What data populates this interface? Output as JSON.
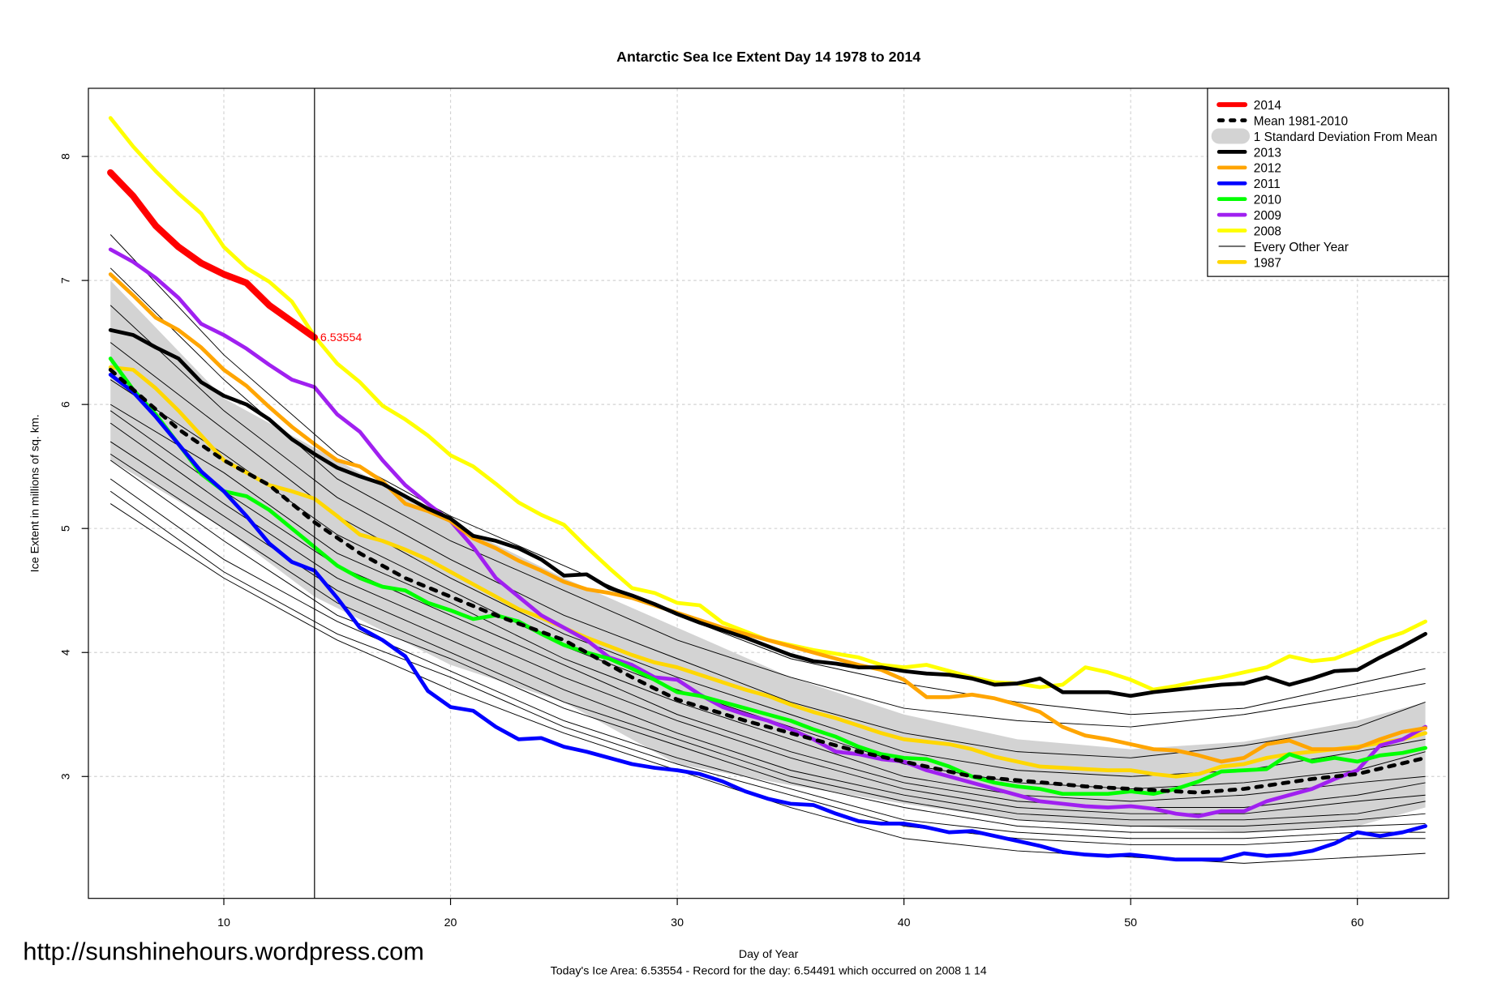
{
  "chart_data": {
    "type": "line",
    "title": "Antarctic Sea Ice Extent Day 14 1978 to 2014",
    "xlabel": "Day of Year",
    "ylabel": "Ice Extent in millions of sq. km.",
    "xlim": [
      4,
      64
    ],
    "ylim": [
      2.05,
      8.6
    ],
    "xticks": [
      10,
      20,
      30,
      40,
      50,
      60
    ],
    "yticks": [
      3,
      4,
      5,
      6,
      7,
      8
    ],
    "grid": true,
    "legend_position": "top-right",
    "marker_day": 14,
    "end_label": "6.53554",
    "footer": "Today's Ice Area: 6.53554  - Record for the day: 6.54491 which occurred on 2008 1 14",
    "watermark": "http://sunshinehours.wordpress.com",
    "sd_band": {
      "days": [
        5,
        10,
        14,
        20,
        25,
        30,
        35,
        40,
        45,
        50,
        55,
        60,
        63
      ],
      "upper": [
        7.0,
        6.05,
        5.65,
        5.05,
        4.6,
        4.2,
        3.8,
        3.5,
        3.3,
        3.22,
        3.28,
        3.45,
        3.6
      ],
      "lower": [
        5.55,
        5.0,
        4.45,
        3.9,
        3.6,
        3.1,
        2.93,
        2.78,
        2.65,
        2.6,
        2.55,
        2.6,
        2.75
      ]
    },
    "other_years": {
      "days": [
        5,
        10,
        15,
        20,
        25,
        30,
        35,
        40,
        45,
        50,
        55,
        60,
        63
      ],
      "series": [
        [
          7.37,
          6.4,
          5.6,
          5.1,
          4.7,
          4.3,
          3.95,
          3.75,
          3.6,
          3.5,
          3.55,
          3.75,
          3.87
        ],
        [
          7.1,
          6.2,
          5.4,
          4.9,
          4.5,
          4.1,
          3.8,
          3.55,
          3.45,
          3.4,
          3.5,
          3.65,
          3.75
        ],
        [
          6.8,
          5.95,
          5.25,
          4.75,
          4.3,
          3.95,
          3.6,
          3.35,
          3.2,
          3.15,
          3.25,
          3.4,
          3.6
        ],
        [
          6.5,
          5.8,
          5.1,
          4.6,
          4.15,
          3.8,
          3.5,
          3.2,
          3.05,
          3.0,
          3.05,
          3.2,
          3.3
        ],
        [
          6.2,
          5.6,
          4.95,
          4.5,
          4.05,
          3.7,
          3.4,
          3.1,
          2.95,
          2.9,
          2.95,
          3.05,
          3.2
        ],
        [
          6.0,
          5.45,
          4.8,
          4.4,
          3.95,
          3.6,
          3.3,
          3.0,
          2.85,
          2.8,
          2.85,
          2.95,
          3.0
        ],
        [
          5.95,
          5.3,
          4.7,
          4.3,
          3.9,
          3.5,
          3.2,
          2.95,
          2.8,
          2.75,
          2.75,
          2.85,
          2.95
        ],
        [
          5.85,
          5.2,
          4.6,
          4.2,
          3.8,
          3.45,
          3.15,
          2.9,
          2.75,
          2.7,
          2.7,
          2.8,
          2.85
        ],
        [
          5.7,
          5.1,
          4.5,
          4.1,
          3.7,
          3.35,
          3.05,
          2.85,
          2.7,
          2.65,
          2.65,
          2.7,
          2.8
        ],
        [
          5.6,
          5.0,
          4.4,
          4.0,
          3.6,
          3.3,
          3.0,
          2.8,
          2.65,
          2.6,
          2.6,
          2.65,
          2.7
        ],
        [
          5.55,
          4.9,
          4.3,
          3.95,
          3.55,
          3.25,
          2.95,
          2.75,
          2.6,
          2.55,
          2.55,
          2.6,
          2.62
        ],
        [
          5.4,
          4.75,
          4.25,
          3.85,
          3.45,
          3.15,
          2.9,
          2.65,
          2.55,
          2.5,
          2.5,
          2.55,
          2.55
        ],
        [
          5.3,
          4.65,
          4.15,
          3.8,
          3.4,
          3.1,
          2.85,
          2.6,
          2.5,
          2.45,
          2.45,
          2.5,
          2.5
        ],
        [
          5.2,
          4.6,
          4.1,
          3.7,
          3.35,
          3.05,
          2.75,
          2.5,
          2.4,
          2.35,
          2.3,
          2.35,
          2.38
        ]
      ]
    },
    "series": [
      {
        "name": "2014",
        "color": "#ff0000",
        "width": 7,
        "start": 5,
        "values": [
          7.87,
          7.68,
          7.44,
          7.27,
          7.14,
          7.05,
          6.98,
          6.8,
          6.67,
          6.54
        ]
      },
      {
        "name": "Mean 1981-2010",
        "color": "#000000",
        "width": 4,
        "dashed": true,
        "days": [
          5,
          8,
          10,
          12,
          14,
          16,
          18,
          20,
          22,
          25,
          28,
          30,
          33,
          35,
          38,
          40,
          43,
          45,
          48,
          50,
          53,
          55,
          58,
          60,
          63
        ],
        "values": [
          6.28,
          5.8,
          5.55,
          5.35,
          5.05,
          4.8,
          4.6,
          4.45,
          4.3,
          4.1,
          3.8,
          3.62,
          3.45,
          3.35,
          3.2,
          3.12,
          3.0,
          2.97,
          2.92,
          2.9,
          2.87,
          2.9,
          2.98,
          3.02,
          3.15
        ]
      },
      {
        "name": "1 Standard Deviation From Mean",
        "color": "#d3d3d3",
        "band": true
      },
      {
        "name": "2013",
        "color": "#000000",
        "width": 4,
        "start": 5,
        "values": [
          6.6,
          6.56,
          6.46,
          6.37,
          6.18,
          6.07,
          6.0,
          5.88,
          5.72,
          5.6,
          5.49,
          5.42,
          5.36,
          5.26,
          5.16,
          5.08,
          4.94,
          4.9,
          4.84,
          4.75,
          4.62,
          4.63,
          4.52,
          4.46,
          4.39,
          4.31,
          4.24,
          4.18,
          4.12,
          4.05,
          3.98,
          3.93,
          3.91,
          3.88,
          3.88,
          3.85,
          3.83,
          3.82,
          3.79,
          3.74,
          3.75,
          3.79,
          3.68,
          3.68,
          3.68,
          3.65,
          3.68,
          3.7,
          3.72,
          3.74,
          3.75,
          3.8,
          3.74,
          3.79,
          3.85,
          3.86,
          3.96,
          4.05,
          4.15
        ]
      },
      {
        "name": "2012",
        "color": "#ffa500",
        "width": 4,
        "start": 5,
        "values": [
          7.05,
          6.88,
          6.7,
          6.6,
          6.46,
          6.28,
          6.15,
          5.98,
          5.82,
          5.68,
          5.55,
          5.5,
          5.38,
          5.2,
          5.14,
          5.06,
          4.92,
          4.84,
          4.74,
          4.66,
          4.57,
          4.51,
          4.48,
          4.44,
          4.38,
          4.32,
          4.26,
          4.2,
          4.15,
          4.1,
          4.05,
          4.0,
          3.95,
          3.9,
          3.86,
          3.78,
          3.64,
          3.64,
          3.66,
          3.63,
          3.58,
          3.52,
          3.4,
          3.33,
          3.3,
          3.26,
          3.22,
          3.21,
          3.17,
          3.12,
          3.15,
          3.26,
          3.29,
          3.22,
          3.22,
          3.23,
          3.3,
          3.36,
          3.39
        ]
      },
      {
        "name": "2011",
        "color": "#0000ff",
        "width": 4,
        "start": 5,
        "values": [
          6.24,
          6.1,
          5.9,
          5.68,
          5.46,
          5.3,
          5.1,
          4.88,
          4.73,
          4.66,
          4.44,
          4.2,
          4.1,
          3.97,
          3.69,
          3.56,
          3.53,
          3.4,
          3.3,
          3.31,
          3.24,
          3.2,
          3.15,
          3.1,
          3.07,
          3.05,
          3.02,
          2.96,
          2.88,
          2.82,
          2.78,
          2.77,
          2.7,
          2.64,
          2.62,
          2.62,
          2.59,
          2.55,
          2.56,
          2.52,
          2.48,
          2.44,
          2.39,
          2.37,
          2.36,
          2.37,
          2.35,
          2.33,
          2.33,
          2.33,
          2.38,
          2.36,
          2.37,
          2.4,
          2.46,
          2.55,
          2.52,
          2.55,
          2.6
        ]
      },
      {
        "name": "2010",
        "color": "#00ff00",
        "width": 4,
        "start": 5,
        "values": [
          6.37,
          6.12,
          5.92,
          5.68,
          5.44,
          5.3,
          5.26,
          5.15,
          5.0,
          4.85,
          4.7,
          4.6,
          4.53,
          4.5,
          4.4,
          4.34,
          4.27,
          4.3,
          4.25,
          4.15,
          4.06,
          4.0,
          3.95,
          3.87,
          3.78,
          3.68,
          3.65,
          3.6,
          3.55,
          3.5,
          3.45,
          3.38,
          3.32,
          3.24,
          3.18,
          3.15,
          3.14,
          3.08,
          3.0,
          2.95,
          2.92,
          2.9,
          2.86,
          2.86,
          2.86,
          2.88,
          2.86,
          2.9,
          2.96,
          3.04,
          3.05,
          3.06,
          3.18,
          3.12,
          3.15,
          3.12,
          3.17,
          3.19,
          3.23
        ]
      },
      {
        "name": "2009",
        "color": "#a020f0",
        "width": 4,
        "start": 5,
        "values": [
          7.25,
          7.15,
          7.02,
          6.86,
          6.65,
          6.56,
          6.45,
          6.32,
          6.2,
          6.14,
          5.92,
          5.78,
          5.55,
          5.35,
          5.2,
          5.06,
          4.85,
          4.6,
          4.45,
          4.3,
          4.2,
          4.1,
          3.96,
          3.9,
          3.8,
          3.78,
          3.66,
          3.56,
          3.5,
          3.45,
          3.38,
          3.3,
          3.2,
          3.18,
          3.14,
          3.12,
          3.05,
          3.0,
          2.95,
          2.9,
          2.85,
          2.8,
          2.78,
          2.76,
          2.75,
          2.76,
          2.74,
          2.7,
          2.68,
          2.72,
          2.72,
          2.8,
          2.85,
          2.9,
          2.98,
          3.05,
          3.25,
          3.3,
          3.4
        ]
      },
      {
        "name": "2008",
        "color": "#ffff00",
        "width": 4,
        "start": 5,
        "values": [
          8.31,
          8.08,
          7.88,
          7.7,
          7.54,
          7.27,
          7.1,
          6.99,
          6.83,
          6.55,
          6.33,
          6.18,
          5.99,
          5.88,
          5.75,
          5.59,
          5.5,
          5.36,
          5.21,
          5.11,
          5.03,
          4.85,
          4.68,
          4.52,
          4.48,
          4.4,
          4.38,
          4.24,
          4.17,
          4.1,
          4.06,
          4.02,
          3.99,
          3.96,
          3.9,
          3.88,
          3.9,
          3.85,
          3.8,
          3.76,
          3.75,
          3.72,
          3.74,
          3.88,
          3.84,
          3.78,
          3.7,
          3.73,
          3.77,
          3.8,
          3.84,
          3.88,
          3.97,
          3.93,
          3.95,
          4.02,
          4.1,
          4.16,
          4.25
        ]
      },
      {
        "name": "Every Other Year",
        "color": "#000000",
        "width": 1,
        "thin": true
      },
      {
        "name": "1987",
        "color": "#ffd700",
        "width": 4,
        "start": 5,
        "values": [
          6.3,
          6.28,
          6.13,
          5.95,
          5.75,
          5.55,
          5.45,
          5.35,
          5.3,
          5.24,
          5.1,
          4.95,
          4.9,
          4.83,
          4.75,
          4.65,
          4.55,
          4.45,
          4.35,
          4.28,
          4.2,
          4.12,
          4.05,
          3.98,
          3.92,
          3.88,
          3.82,
          3.76,
          3.7,
          3.65,
          3.58,
          3.52,
          3.47,
          3.41,
          3.35,
          3.3,
          3.28,
          3.26,
          3.22,
          3.16,
          3.12,
          3.08,
          3.07,
          3.06,
          3.05,
          3.05,
          3.02,
          3.0,
          3.02,
          3.08,
          3.1,
          3.15,
          3.18,
          3.2,
          3.22,
          3.24,
          3.27,
          3.3,
          3.35
        ]
      }
    ]
  }
}
